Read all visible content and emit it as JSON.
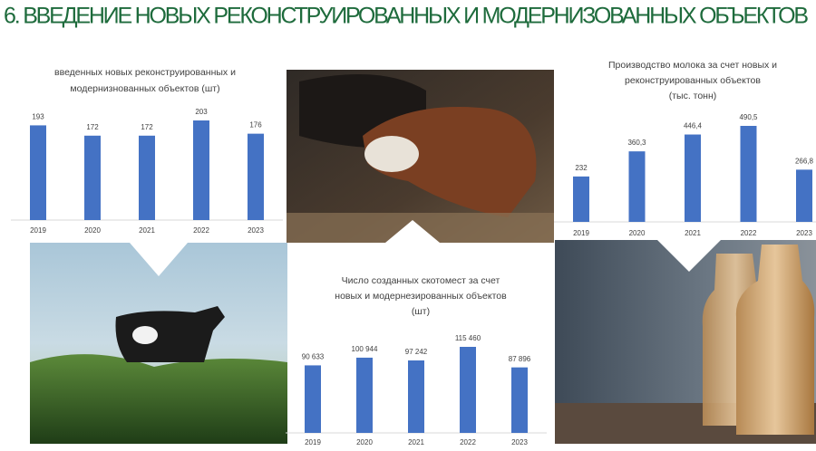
{
  "title": "6. ВВЕДЕНИЕ НОВЫХ РЕКОНСТРУИРОВАННЫХ И МОДЕРНИЗОВАННЫХ ОБЪЕКТОВ",
  "chart_data": [
    {
      "type": "bar",
      "title": [
        "введенных новых реконструированных и",
        "модернизнованных объектов (шт)"
      ],
      "categories": [
        "2019",
        "2020",
        "2021",
        "2022",
        "2023"
      ],
      "values": [
        193,
        172,
        172,
        203,
        176
      ],
      "color": "#4472c4"
    },
    {
      "type": "bar",
      "title": [
        "Число созданных скотомест за счет",
        "новых и модернезированных объектов",
        "(шт)"
      ],
      "categories": [
        "2019",
        "2020",
        "2021",
        "2022",
        "2023"
      ],
      "values": [
        90633,
        100944,
        97242,
        115460,
        87896
      ],
      "value_labels": [
        "90 633",
        "100 944",
        "97 242",
        "115 460",
        "87 896"
      ],
      "color": "#4472c4"
    },
    {
      "type": "bar",
      "title": [
        "Производство молока за счет новых и",
        "реконструированных объектов",
        "(тыс. тонн)"
      ],
      "categories": [
        "2019",
        "2020",
        "2021",
        "2022",
        "2023"
      ],
      "values": [
        232,
        360.3,
        446.4,
        490.5,
        266.8
      ],
      "value_labels": [
        "232",
        "360,3",
        "446,4",
        "490,5",
        "266,8"
      ],
      "color": "#4472c4"
    }
  ]
}
